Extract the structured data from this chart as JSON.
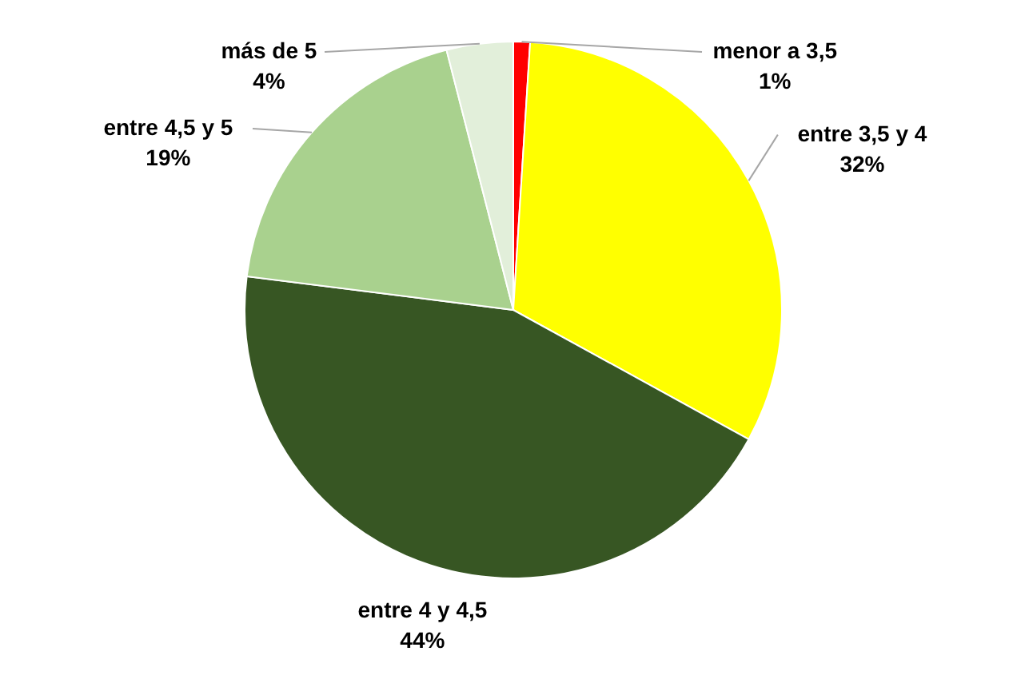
{
  "chart_data": {
    "type": "pie",
    "categories": [
      "menor a 3,5",
      "entre 3,5 y 4",
      "entre 4 y 4,5",
      "entre 4,5 y 5",
      "más de 5"
    ],
    "values": [
      1,
      32,
      44,
      19,
      4
    ],
    "colors": [
      "#ff0000",
      "#ffff00",
      "#375623",
      "#a9d18e",
      "#e2efda"
    ],
    "value_labels": [
      "1%",
      "32%",
      "44%",
      "19%",
      "4%"
    ],
    "legend": false
  }
}
